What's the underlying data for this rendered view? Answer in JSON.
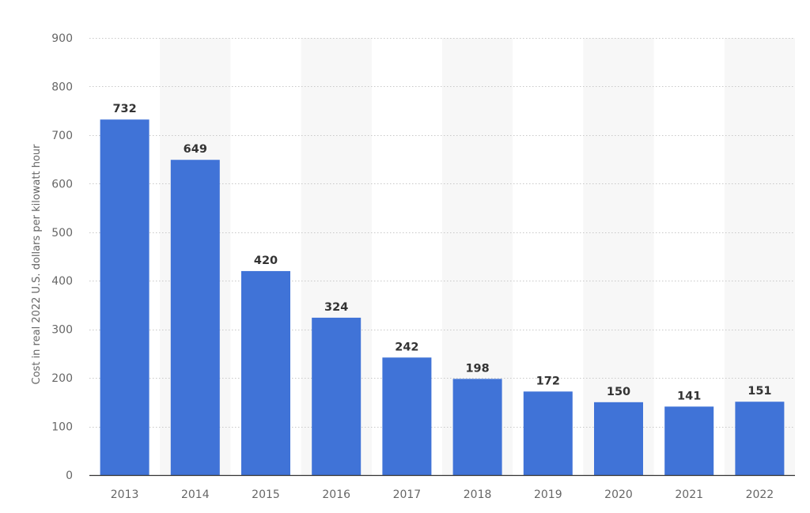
{
  "chart_data": {
    "type": "bar",
    "categories": [
      "2013",
      "2014",
      "2015",
      "2016",
      "2017",
      "2018",
      "2019",
      "2020",
      "2021",
      "2022"
    ],
    "values": [
      732,
      649,
      420,
      324,
      242,
      198,
      172,
      150,
      141,
      151
    ],
    "data_labels": [
      "732",
      "649",
      "420",
      "324",
      "242",
      "198",
      "172",
      "150",
      "141",
      "151"
    ],
    "title": "",
    "xlabel": "",
    "ylabel": "Cost in real 2022 U.S. dollars per kilowatt hour",
    "ylim": [
      0,
      900
    ],
    "yticks": [
      0,
      100,
      200,
      300,
      400,
      500,
      600,
      700,
      800,
      900
    ],
    "ytick_labels": [
      "0",
      "100",
      "200",
      "300",
      "400",
      "500",
      "600",
      "700",
      "800",
      "900"
    ],
    "grid": true,
    "grid_style": "dotted",
    "alternating_column_shading": true,
    "bar_color": "#4073d7",
    "shade_color": "#f7f7f7",
    "grid_color": "#c8c8c8",
    "axis_color": "#333333"
  }
}
